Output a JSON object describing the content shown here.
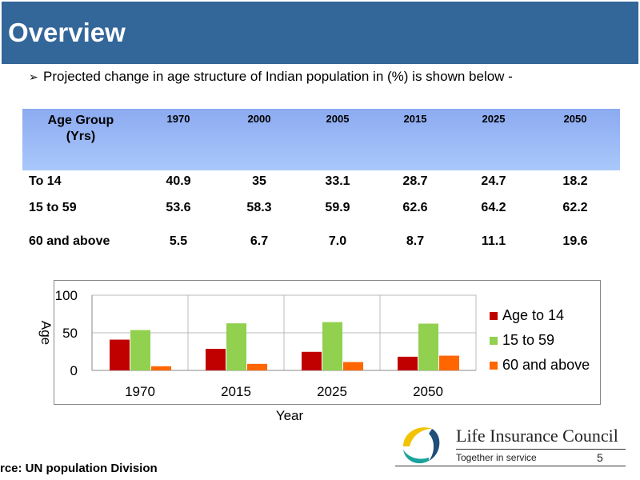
{
  "slide": {
    "title": "Overview",
    "bullet": "Projected  change in age structure of Indian population in (%) is shown below -",
    "source": "rce: UN population Division",
    "page_number": "5"
  },
  "table": {
    "header": {
      "group_line1": "Age Group",
      "group_line2": "(Yrs)",
      "years": [
        "1970",
        "2000",
        "2005",
        "2015",
        "2025",
        "2050"
      ]
    },
    "rows": [
      {
        "label": "To 14",
        "values": [
          "40.9",
          "35",
          "33.1",
          "28.7",
          "24.7",
          "18.2"
        ]
      },
      {
        "label": "15 to 59",
        "values": [
          "53.6",
          "58.3",
          "59.9",
          "62.6",
          "64.2",
          "62.2"
        ]
      },
      {
        "label": "60 and above",
        "values": [
          "5.5",
          "6.7",
          "7.0",
          "8.7",
          "11.1",
          "19.6"
        ]
      }
    ]
  },
  "chart_data": {
    "type": "bar",
    "categories": [
      "1970",
      "2015",
      "2025",
      "2050"
    ],
    "series": [
      {
        "name": "Age to 14",
        "values": [
          40.9,
          28.7,
          24.7,
          18.2
        ],
        "color": "#c00000"
      },
      {
        "name": "15 to 59",
        "values": [
          53.6,
          62.6,
          64.2,
          62.2
        ],
        "color": "#92d050"
      },
      {
        "name": "60 and above",
        "values": [
          5.5,
          8.7,
          11.1,
          19.6
        ],
        "color": "#ff6600"
      }
    ],
    "xlabel": "Year",
    "ylabel": "Age",
    "ylim": [
      0,
      100
    ],
    "yticks": [
      "0",
      "50",
      "100"
    ],
    "grid": true,
    "legend_position": "right"
  },
  "logo": {
    "brand": "Life Insurance Council",
    "tagline": "Together in service",
    "colors": {
      "blue": "#1f4e79",
      "yellow": "#f2c300",
      "teal": "#1aa39b"
    }
  },
  "theme": {
    "title_bar": "#336699",
    "table_header_top": "#8caaf0",
    "table_header_bottom": "#a9c8fb"
  }
}
